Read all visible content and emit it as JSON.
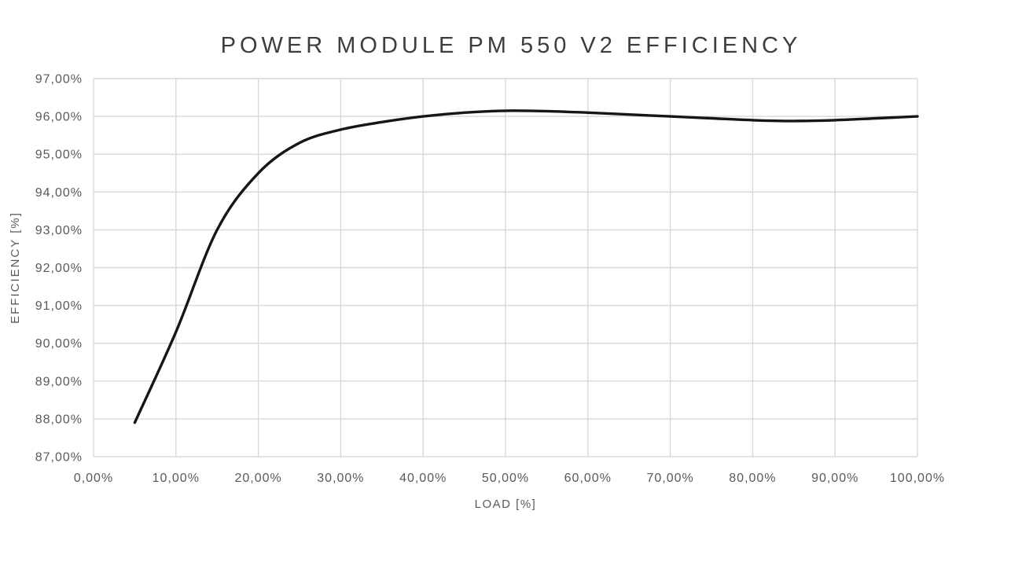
{
  "chart_data": {
    "type": "line",
    "title": "POWER MODULE PM 550 V2 EFFICIENCY",
    "xlabel": "LOAD [%]",
    "ylabel": "EFFICIENCY [%]",
    "xlim": [
      0,
      100
    ],
    "ylim": [
      87,
      97
    ],
    "grid": true,
    "legend": "none",
    "x_ticks": {
      "values": [
        0,
        10,
        20,
        30,
        40,
        50,
        60,
        70,
        80,
        90,
        100
      ],
      "labels": [
        "0,00%",
        "10,00%",
        "20,00%",
        "30,00%",
        "40,00%",
        "50,00%",
        "60,00%",
        "70,00%",
        "80,00%",
        "90,00%",
        "100,00%"
      ]
    },
    "y_ticks": {
      "values": [
        87,
        88,
        89,
        90,
        91,
        92,
        93,
        94,
        95,
        96,
        97
      ],
      "labels": [
        "87,00%",
        "88,00%",
        "89,00%",
        "90,00%",
        "91,00%",
        "92,00%",
        "93,00%",
        "94,00%",
        "95,00%",
        "96,00%",
        "97,00%"
      ]
    },
    "series": [
      {
        "name": "Efficiency",
        "x": [
          5,
          10,
          15,
          20,
          25,
          30,
          35,
          40,
          45,
          50,
          55,
          60,
          65,
          70,
          75,
          80,
          85,
          90,
          95,
          100
        ],
        "y": [
          87.9,
          90.3,
          93.0,
          94.5,
          95.3,
          95.65,
          95.85,
          96.0,
          96.1,
          96.15,
          96.14,
          96.1,
          96.05,
          96.0,
          95.95,
          95.9,
          95.88,
          95.9,
          95.95,
          96.0
        ]
      }
    ],
    "colors": {
      "line": "#161616",
      "grid": "#d8d8d8",
      "tick_label": "#595959",
      "axis_title": "#595959",
      "title": "#3d3d3d",
      "background": "#ffffff"
    }
  }
}
